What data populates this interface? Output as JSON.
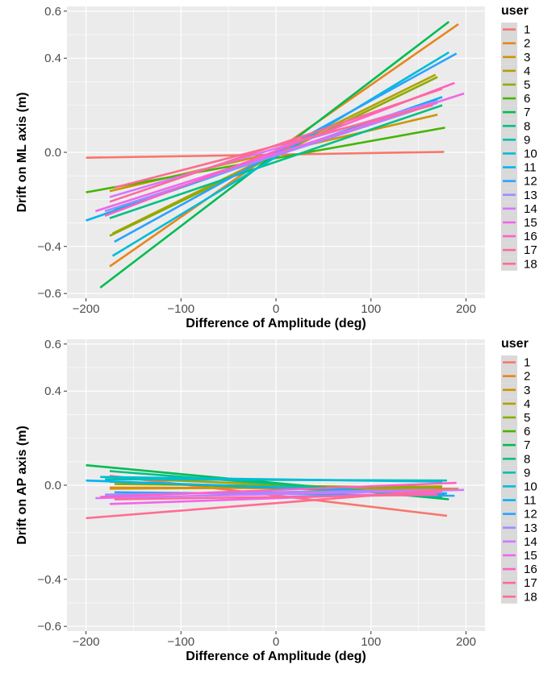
{
  "colors": {
    "panel_background": "#ebebeb",
    "grid": "#ffffff",
    "legend_key_background": "#d9d9d9",
    "series": [
      "#F8766D",
      "#E7851E",
      "#D09400",
      "#B2A100",
      "#89AC00",
      "#45B500",
      "#00BC51",
      "#00C087",
      "#00C0B2",
      "#00BCD6",
      "#00B3F2",
      "#29A3FF",
      "#9C8DFF",
      "#D277FF",
      "#F166E8",
      "#FF61C7",
      "#FF689E",
      "#FF6C91"
    ]
  },
  "chart_data": [
    {
      "type": "line",
      "xlabel": "Difference of Amplitude (deg)",
      "ylabel": "Drift on ML axis (m)",
      "xlim": [
        -220,
        220
      ],
      "ylim": [
        -0.62,
        0.62
      ],
      "x_ticks": [
        -200,
        -100,
        0,
        100,
        200
      ],
      "x_tick_labels": [
        "−200",
        "−100",
        "0",
        "100",
        "200"
      ],
      "y_ticks": [
        -0.6,
        -0.4,
        0.0,
        0.4,
        0.6
      ],
      "y_tick_labels": [
        "−0.6",
        "−0.4",
        "0.0",
        "0.4",
        "0.6"
      ],
      "grid": true,
      "legend": {
        "title": "user",
        "position": "right"
      },
      "series": [
        {
          "name": "1",
          "x": [
            -200,
            177
          ],
          "y": [
            -0.023,
            0.002
          ]
        },
        {
          "name": "2",
          "x": [
            -175,
            192
          ],
          "y": [
            -0.485,
            0.545
          ]
        },
        {
          "name": "3",
          "x": [
            -175,
            170
          ],
          "y": [
            -0.165,
            0.16
          ]
        },
        {
          "name": "4",
          "x": [
            -172,
            168
          ],
          "y": [
            -0.345,
            0.33
          ]
        },
        {
          "name": "5",
          "x": [
            -175,
            170
          ],
          "y": [
            -0.355,
            0.32
          ]
        },
        {
          "name": "6",
          "x": [
            -200,
            178
          ],
          "y": [
            -0.17,
            0.105
          ]
        },
        {
          "name": "7",
          "x": [
            -185,
            182
          ],
          "y": [
            -0.575,
            0.555
          ]
        },
        {
          "name": "8",
          "x": [
            -175,
            175
          ],
          "y": [
            -0.28,
            0.2
          ]
        },
        {
          "name": "9",
          "x": [
            -170,
            170
          ],
          "y": [
            -0.245,
            0.225
          ]
        },
        {
          "name": "10",
          "x": [
            -172,
            182
          ],
          "y": [
            -0.44,
            0.425
          ]
        },
        {
          "name": "11",
          "x": [
            -200,
            175
          ],
          "y": [
            -0.29,
            0.235
          ]
        },
        {
          "name": "12",
          "x": [
            -170,
            190
          ],
          "y": [
            -0.38,
            0.42
          ]
        },
        {
          "name": "13",
          "x": [
            -180,
            170
          ],
          "y": [
            -0.25,
            0.21
          ]
        },
        {
          "name": "14",
          "x": [
            -175,
            168
          ],
          "y": [
            -0.19,
            0.215
          ]
        },
        {
          "name": "15",
          "x": [
            -190,
            198
          ],
          "y": [
            -0.25,
            0.25
          ]
        },
        {
          "name": "16",
          "x": [
            -180,
            188
          ],
          "y": [
            -0.27,
            0.295
          ]
        },
        {
          "name": "17",
          "x": [
            -175,
            175
          ],
          "y": [
            -0.21,
            0.27
          ]
        },
        {
          "name": "18",
          "x": [
            -170,
            165
          ],
          "y": [
            -0.15,
            0.2
          ]
        }
      ]
    },
    {
      "type": "line",
      "xlabel": "Difference of Amplitude (deg)",
      "ylabel": "Drift on AP axis (m)",
      "xlim": [
        -220,
        220
      ],
      "ylim": [
        -0.62,
        0.62
      ],
      "x_ticks": [
        -200,
        -100,
        0,
        100,
        200
      ],
      "x_tick_labels": [
        "−200",
        "−100",
        "0",
        "100",
        "200"
      ],
      "y_ticks": [
        -0.6,
        -0.4,
        0.0,
        0.4,
        0.6
      ],
      "y_tick_labels": [
        "−0.6",
        "−0.4",
        "0.0",
        "0.4",
        "0.6"
      ],
      "grid": true,
      "legend": {
        "title": "user",
        "position": "right"
      },
      "series": [
        {
          "name": "1",
          "x": [
            -175,
            180
          ],
          "y": [
            0.04,
            -0.13
          ]
        },
        {
          "name": "2",
          "x": [
            -175,
            192
          ],
          "y": [
            -0.01,
            -0.015
          ]
        },
        {
          "name": "3",
          "x": [
            -175,
            175
          ],
          "y": [
            -0.015,
            -0.005
          ]
        },
        {
          "name": "4",
          "x": [
            -172,
            170
          ],
          "y": [
            0.03,
            -0.025
          ]
        },
        {
          "name": "5",
          "x": [
            -170,
            175
          ],
          "y": [
            0.005,
            -0.01
          ]
        },
        {
          "name": "6",
          "x": [
            -175,
            178
          ],
          "y": [
            0.015,
            -0.04
          ]
        },
        {
          "name": "7",
          "x": [
            -200,
            182
          ],
          "y": [
            0.085,
            -0.06
          ]
        },
        {
          "name": "8",
          "x": [
            -175,
            175
          ],
          "y": [
            0.06,
            -0.05
          ]
        },
        {
          "name": "9",
          "x": [
            -180,
            180
          ],
          "y": [
            0.025,
            0.02
          ]
        },
        {
          "name": "10",
          "x": [
            -185,
            175
          ],
          "y": [
            0.035,
            0.015
          ]
        },
        {
          "name": "11",
          "x": [
            -200,
            180
          ],
          "y": [
            0.02,
            -0.035
          ]
        },
        {
          "name": "12",
          "x": [
            -170,
            188
          ],
          "y": [
            -0.03,
            -0.045
          ]
        },
        {
          "name": "13",
          "x": [
            -180,
            170
          ],
          "y": [
            -0.04,
            -0.02
          ]
        },
        {
          "name": "14",
          "x": [
            -190,
            198
          ],
          "y": [
            -0.055,
            -0.02
          ]
        },
        {
          "name": "15",
          "x": [
            -175,
            175
          ],
          "y": [
            -0.08,
            -0.03
          ]
        },
        {
          "name": "16",
          "x": [
            -185,
            190
          ],
          "y": [
            -0.05,
            0.01
          ]
        },
        {
          "name": "17",
          "x": [
            -170,
            170
          ],
          "y": [
            -0.06,
            -0.04
          ]
        },
        {
          "name": "18",
          "x": [
            -200,
            175
          ],
          "y": [
            -0.14,
            -0.02
          ]
        }
      ]
    }
  ]
}
